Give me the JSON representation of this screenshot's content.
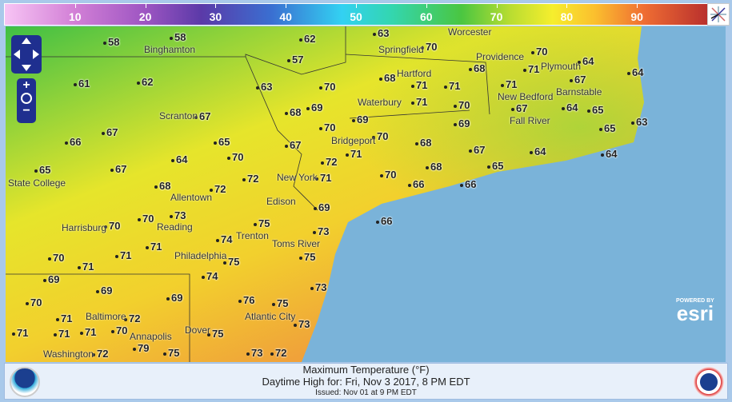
{
  "legend": {
    "ticks": [
      10,
      20,
      30,
      40,
      50,
      60,
      70,
      80,
      90
    ],
    "range": [
      0,
      100
    ],
    "units": "°F"
  },
  "footer": {
    "title": "Maximum Temperature (°F)",
    "subtitle": "Daytime High for: Fri, Nov   3 2017,   8 PM EDT",
    "issued": "Issued: Nov 01 at 9 PM EDT"
  },
  "attribution": {
    "powered": "POWERED BY",
    "esri": "esri"
  },
  "colors": {
    "ocean": "#7ab3d9",
    "cool": "#4fc63e",
    "mid": "#e8e62a",
    "warm": "#f2a33a"
  },
  "cities": [
    "Binghamton",
    "Scranton",
    "State College",
    "Allentown",
    "Reading",
    "Harrisburg",
    "Philadelphia",
    "Trenton",
    "Edison",
    "New York",
    "Toms River",
    "Atlantic City",
    "Dover",
    "Annapolis",
    "Baltimore",
    "Washington",
    "Bridgeport",
    "Waterbury",
    "Hartford",
    "Springfield",
    "Worcester",
    "Providence",
    "Plymouth",
    "Barnstable",
    "New Bedford",
    "Fall River"
  ],
  "temperatures": [
    58,
    58,
    62,
    63,
    70,
    70,
    64,
    64,
    57,
    61,
    62,
    63,
    70,
    68,
    71,
    71,
    68,
    71,
    67,
    71,
    69,
    68,
    71,
    70,
    69,
    67,
    64,
    65,
    63,
    65,
    67,
    70,
    69,
    70,
    68,
    66,
    67,
    65,
    67,
    64,
    64,
    67,
    71,
    65,
    72,
    70,
    64,
    67,
    65,
    68,
    70,
    71,
    72,
    66,
    66,
    68,
    72,
    69,
    66,
    70,
    70,
    73,
    75,
    73,
    74,
    71,
    71,
    70,
    71,
    75,
    75,
    74,
    69,
    69,
    73,
    69,
    76,
    75,
    70,
    71,
    72,
    73,
    71,
    71,
    71,
    70,
    75,
    79,
    73,
    72,
    72,
    75
  ],
  "controls": {
    "zoom_in": "+",
    "zoom_out": "−"
  }
}
